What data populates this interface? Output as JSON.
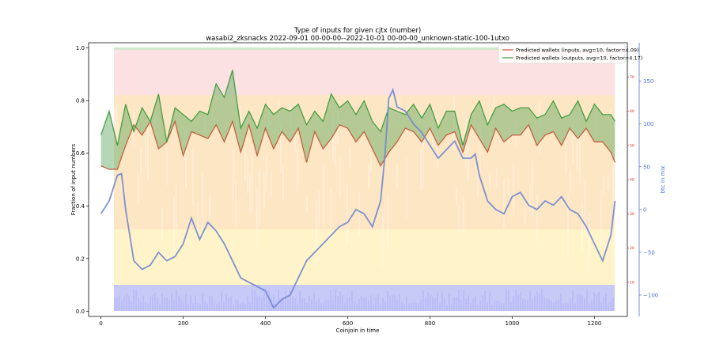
{
  "chart_data": {
    "type": "line",
    "title": "Type of inputs for given cjtx (number)",
    "subtitle": "wasabi2_zksnacks 2022-09-01 00-00-00--2022-10-01 00-00-00_unknown-static-100-1utxo",
    "xlabel": "Coinjoin in time",
    "ylabel": "Fraction of input numbers",
    "y2label": "",
    "y3label": "btc in mix",
    "xlim": [
      -30,
      1280
    ],
    "ylim": [
      -0.02,
      1.02
    ],
    "y2lim": [
      0,
      80
    ],
    "y3lim": [
      -125,
      195
    ],
    "xticks": [
      0,
      200,
      400,
      600,
      800,
      1000,
      1200
    ],
    "yticks": [
      0.0,
      0.2,
      0.4,
      0.6,
      0.8,
      1.0
    ],
    "y2ticks": [
      10,
      20,
      30,
      40,
      50,
      60,
      70
    ],
    "y3ticks": [
      -100,
      -50,
      0,
      50,
      100,
      150
    ],
    "grid": false,
    "legend_position": "top-right",
    "series": [
      {
        "name": "Predicted wallets (inputs, avg=10, factor=4.09)",
        "axis": "y2",
        "color": "#c0593a",
        "x": [
          0,
          20,
          40,
          60,
          80,
          100,
          120,
          140,
          160,
          180,
          200,
          220,
          240,
          260,
          280,
          300,
          320,
          340,
          360,
          380,
          400,
          420,
          440,
          460,
          480,
          500,
          520,
          540,
          560,
          580,
          600,
          620,
          640,
          660,
          680,
          700,
          720,
          740,
          760,
          780,
          800,
          820,
          840,
          860,
          880,
          900,
          920,
          940,
          960,
          980,
          1000,
          1020,
          1040,
          1060,
          1080,
          1100,
          1120,
          1140,
          1160,
          1180,
          1200,
          1220,
          1240,
          1250
        ],
        "values": [
          44,
          43,
          43,
          50,
          56,
          53,
          57,
          49,
          51,
          57,
          47,
          54,
          53,
          52,
          56,
          51,
          57,
          48,
          56,
          47,
          55,
          49,
          54,
          51,
          55,
          45,
          54,
          49,
          52,
          56,
          55,
          51,
          54,
          49,
          44,
          48,
          51,
          55,
          54,
          51,
          55,
          50,
          53,
          54,
          48,
          56,
          52,
          48,
          55,
          51,
          53,
          53,
          56,
          50,
          53,
          54,
          50,
          55,
          52,
          55,
          51,
          51,
          48,
          45
        ]
      },
      {
        "name": "Predicted wallets (outputs, avg=10, factor=4.17)",
        "axis": "y2",
        "color": "#3b9a3b",
        "x": [
          0,
          20,
          40,
          60,
          80,
          100,
          120,
          140,
          160,
          180,
          200,
          220,
          240,
          260,
          280,
          300,
          320,
          340,
          360,
          380,
          400,
          420,
          440,
          460,
          480,
          500,
          520,
          540,
          560,
          580,
          600,
          620,
          640,
          660,
          680,
          700,
          720,
          740,
          760,
          780,
          800,
          820,
          840,
          860,
          880,
          900,
          920,
          940,
          960,
          980,
          1000,
          1020,
          1040,
          1060,
          1080,
          1100,
          1120,
          1140,
          1160,
          1180,
          1200,
          1220,
          1240,
          1250
        ],
        "values": [
          53,
          60,
          50,
          62,
          54,
          61,
          57,
          65,
          51,
          61,
          59,
          57,
          60,
          59,
          68,
          64,
          72,
          55,
          60,
          55,
          62,
          59,
          61,
          60,
          62,
          56,
          60,
          57,
          65,
          61,
          63,
          59,
          63,
          57,
          54,
          61,
          60,
          59,
          62,
          58,
          62,
          55,
          60,
          60,
          50,
          59,
          63,
          56,
          61,
          62,
          60,
          61,
          61,
          58,
          59,
          63,
          58,
          59,
          63,
          57,
          62,
          59,
          59,
          57
        ]
      },
      {
        "name": "btc in mix",
        "axis": "y3",
        "color": "#6f86d2",
        "x": [
          0,
          20,
          40,
          50,
          60,
          80,
          100,
          120,
          140,
          160,
          180,
          200,
          220,
          240,
          260,
          280,
          300,
          320,
          340,
          360,
          380,
          400,
          420,
          440,
          460,
          480,
          500,
          520,
          540,
          560,
          580,
          600,
          620,
          640,
          660,
          680,
          690,
          700,
          710,
          720,
          740,
          760,
          780,
          800,
          820,
          840,
          860,
          880,
          900,
          910,
          920,
          940,
          960,
          980,
          1000,
          1020,
          1040,
          1060,
          1080,
          1100,
          1120,
          1140,
          1160,
          1180,
          1200,
          1220,
          1240,
          1250
        ],
        "values": [
          -5,
          10,
          40,
          42,
          0,
          -60,
          -70,
          -65,
          -50,
          -60,
          -55,
          -40,
          -10,
          -35,
          -15,
          -25,
          -40,
          -60,
          -80,
          -85,
          -90,
          -95,
          -115,
          -105,
          -100,
          -80,
          -60,
          -50,
          -40,
          -30,
          -20,
          -15,
          0,
          -5,
          -20,
          10,
          60,
          130,
          140,
          120,
          115,
          100,
          90,
          75,
          60,
          70,
          80,
          60,
          60,
          65,
          40,
          10,
          0,
          -5,
          15,
          20,
          5,
          0,
          10,
          5,
          15,
          0,
          -5,
          -20,
          -40,
          -60,
          -30,
          10
        ]
      }
    ]
  }
}
